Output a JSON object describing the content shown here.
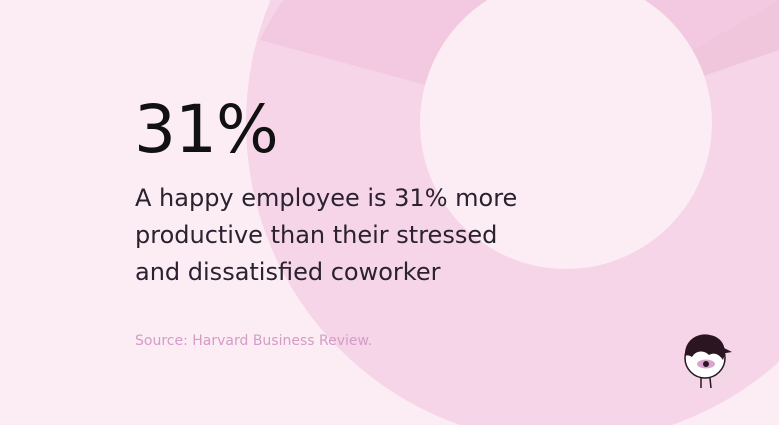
{
  "stat": {
    "value": "31%"
  },
  "description": {
    "lines": [
      "A happy employee is 31% more",
      "productive than their stressed",
      "and dissatisfied coworker"
    ]
  },
  "source": {
    "text": "Source: Harvard Business Review."
  },
  "colors": {
    "background": "#fcecf4",
    "ring": "#f5d5e7",
    "ring_segment": "#f2c9e0",
    "inner_circle": "#fcecf4",
    "stat_text": "#111111",
    "body_text": "#2a2230",
    "source_text": "#d49cc6",
    "mascot_hair": "#2a1520",
    "mascot_eye": "#d9a5cc"
  },
  "icons": {
    "mascot": "mascot-avatar-icon"
  }
}
